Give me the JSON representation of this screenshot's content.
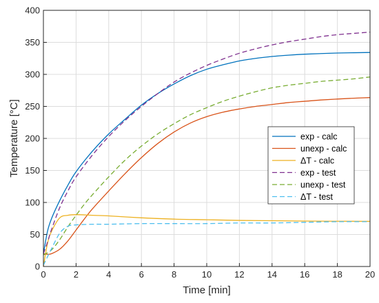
{
  "chart_data": {
    "type": "line",
    "title": "",
    "xlabel": "Time [min]",
    "ylabel": "Temperature [°C]",
    "xlim": [
      0,
      20
    ],
    "ylim": [
      0,
      400
    ],
    "xticks": [
      0,
      2,
      4,
      6,
      8,
      10,
      12,
      14,
      16,
      18,
      20
    ],
    "yticks": [
      0,
      50,
      100,
      150,
      200,
      250,
      300,
      350,
      400
    ],
    "grid": true,
    "legend_position": "center-right",
    "series": [
      {
        "name": "exp - calc",
        "style": "solid",
        "color": "#0072BD",
        "x": [
          0,
          0.25,
          0.5,
          1,
          1.5,
          2,
          3,
          4,
          5,
          6,
          7,
          8,
          9,
          10,
          11,
          12,
          13,
          14,
          15,
          16,
          17,
          18,
          19,
          20
        ],
        "y": [
          20,
          55,
          75,
          103,
          127,
          148,
          180,
          207,
          230,
          252,
          270,
          285,
          298,
          308,
          315,
          321,
          325,
          328,
          330,
          331.5,
          332.5,
          333.3,
          333.8,
          334.2
        ]
      },
      {
        "name": "unexp - calc",
        "style": "solid",
        "color": "#D95319",
        "x": [
          0,
          0.25,
          0.5,
          1,
          1.5,
          2,
          2.5,
          3,
          4,
          5,
          6,
          7,
          8,
          9,
          10,
          11,
          12,
          13,
          14,
          15,
          16,
          17,
          18,
          19,
          20
        ],
        "y": [
          20,
          19,
          20,
          27,
          40,
          57,
          74,
          90,
          118,
          145,
          170,
          192,
          210,
          224,
          234,
          241,
          246,
          250,
          253,
          256,
          258,
          260,
          261.5,
          262.8,
          263.8
        ]
      },
      {
        "name": "ΔT - calc",
        "style": "solid",
        "color": "#EDB120",
        "x": [
          0,
          0.25,
          0.5,
          1,
          1.5,
          2,
          3,
          4,
          6,
          8,
          10,
          12,
          14,
          16,
          18,
          20
        ],
        "y": [
          0,
          36,
          55,
          76,
          80,
          81,
          80,
          79,
          76,
          74,
          73,
          72,
          71.5,
          71,
          70.7,
          70.5
        ]
      },
      {
        "name": "exp - test",
        "style": "dashed",
        "color": "#7E2F8E",
        "x": [
          0,
          0.25,
          0.5,
          1,
          1.5,
          2,
          3,
          4,
          5,
          6,
          7,
          8,
          9,
          10,
          11,
          12,
          13,
          14,
          15,
          16,
          17,
          18,
          19,
          20
        ],
        "y": [
          20,
          38,
          58,
          92,
          118,
          140,
          174,
          203,
          228,
          250,
          270,
          288,
          302,
          314,
          324,
          333,
          340,
          346,
          351,
          355,
          359,
          362,
          364,
          366
        ]
      },
      {
        "name": "unexp - test",
        "style": "dashed",
        "color": "#77AC30",
        "x": [
          0,
          0.5,
          1,
          1.5,
          2,
          2.5,
          3,
          4,
          5,
          6,
          7,
          8,
          9,
          10,
          11,
          12,
          13,
          14,
          15,
          16,
          17,
          18,
          19,
          20
        ],
        "y": [
          18,
          26,
          42,
          62,
          80,
          97,
          112,
          140,
          166,
          188,
          207,
          223,
          237,
          248,
          258,
          266,
          273,
          279,
          283,
          286,
          289,
          291,
          293,
          296
        ]
      },
      {
        "name": "ΔT - test",
        "style": "dashed",
        "color": "#4DBEEE",
        "x": [
          0,
          0.5,
          1,
          1.5,
          2,
          3,
          4,
          6,
          8,
          10,
          12,
          14,
          16,
          18,
          20
        ],
        "y": [
          2,
          28,
          52,
          63,
          65,
          66,
          66,
          67,
          67,
          67,
          68,
          68,
          69,
          70,
          70
        ]
      }
    ]
  }
}
